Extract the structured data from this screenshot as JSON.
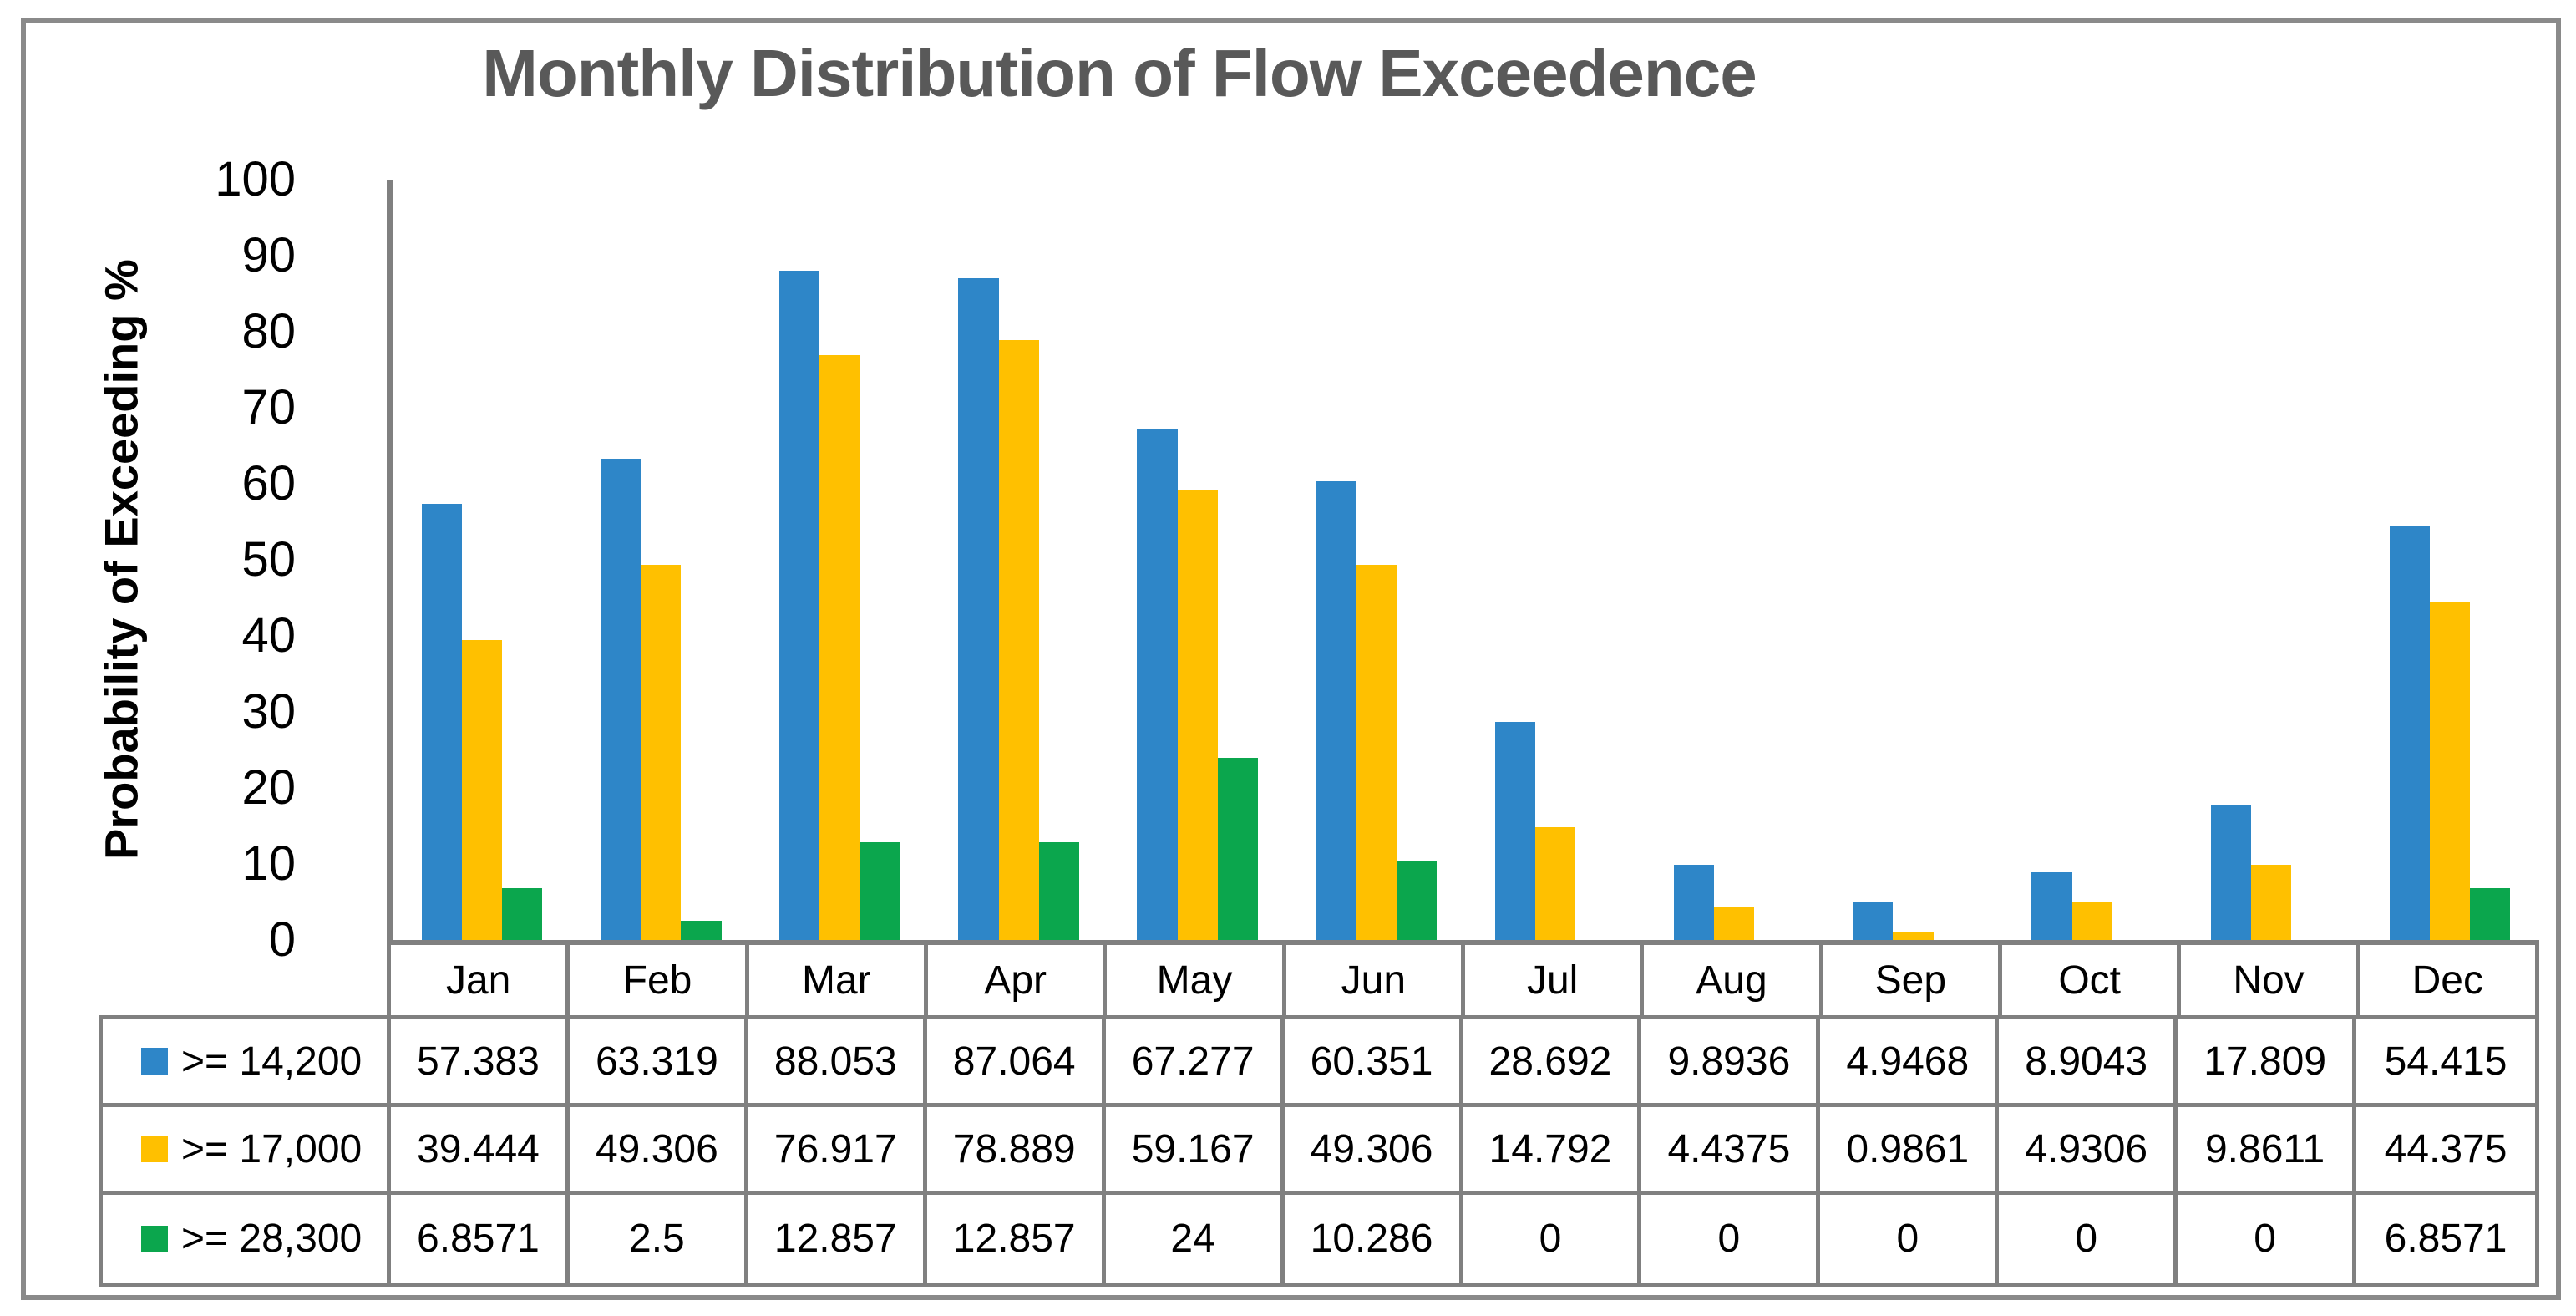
{
  "chart_data": {
    "type": "bar",
    "title": "Monthly Distribution of Flow Exceedence",
    "ylabel": "Probability of Exceeding %",
    "xlabel": "",
    "ylim": [
      0,
      100
    ],
    "ytick_step": 10,
    "yticks": [
      "100",
      "90",
      "80",
      "70",
      "60",
      "50",
      "40",
      "30",
      "20",
      "10",
      "0"
    ],
    "grid": false,
    "legend_position": "data-table-left",
    "categories": [
      "Jan",
      "Feb",
      "Mar",
      "Apr",
      "May",
      "Jun",
      "Jul",
      "Aug",
      "Sep",
      "Oct",
      "Nov",
      "Dec"
    ],
    "series": [
      {
        "name": ">= 14,200",
        "color": "#2E86C8",
        "values": [
          57.383,
          63.319,
          88.053,
          87.064,
          67.277,
          60.351,
          28.692,
          9.8936,
          4.9468,
          8.9043,
          17.809,
          54.415
        ]
      },
      {
        "name": ">= 17,000",
        "color": "#FFC000",
        "values": [
          39.444,
          49.306,
          76.917,
          78.889,
          59.167,
          49.306,
          14.792,
          4.4375,
          0.9861,
          4.9306,
          9.8611,
          44.375
        ]
      },
      {
        "name": ">= 28,300",
        "color": "#0BA64D",
        "values": [
          6.8571,
          2.5,
          12.857,
          12.857,
          24,
          10.286,
          0,
          0,
          0,
          0,
          0,
          6.8571
        ]
      }
    ]
  },
  "data_table": {
    "columns": [
      "Jan",
      "Feb",
      "Mar",
      "Apr",
      "May",
      "Jun",
      "Jul",
      "Aug",
      "Sep",
      "Oct",
      "Nov",
      "Dec"
    ],
    "rows": [
      {
        "label": ">= 14,200",
        "key_color": "#2E86C8",
        "cells": [
          "57.383",
          "63.319",
          "88.053",
          "87.064",
          "67.277",
          "60.351",
          "28.692",
          "9.8936",
          "4.9468",
          "8.9043",
          "17.809",
          "54.415"
        ]
      },
      {
        "label": ">= 17,000",
        "key_color": "#FFC000",
        "cells": [
          "39.444",
          "49.306",
          "76.917",
          "78.889",
          "59.167",
          "49.306",
          "14.792",
          "4.4375",
          "0.9861",
          "4.9306",
          "9.8611",
          "44.375"
        ]
      },
      {
        "label": ">= 28,300",
        "key_color": "#0BA64D",
        "cells": [
          "6.8571",
          "2.5",
          "12.857",
          "12.857",
          "24",
          "10.286",
          "0",
          "0",
          "0",
          "0",
          "0",
          "6.8571"
        ]
      }
    ]
  },
  "colors": {
    "title_text": "#595959",
    "axis_line": "#808080",
    "table_border": "#808080",
    "frame_border": "#8A8A8A",
    "background": "#FFFFFF"
  }
}
